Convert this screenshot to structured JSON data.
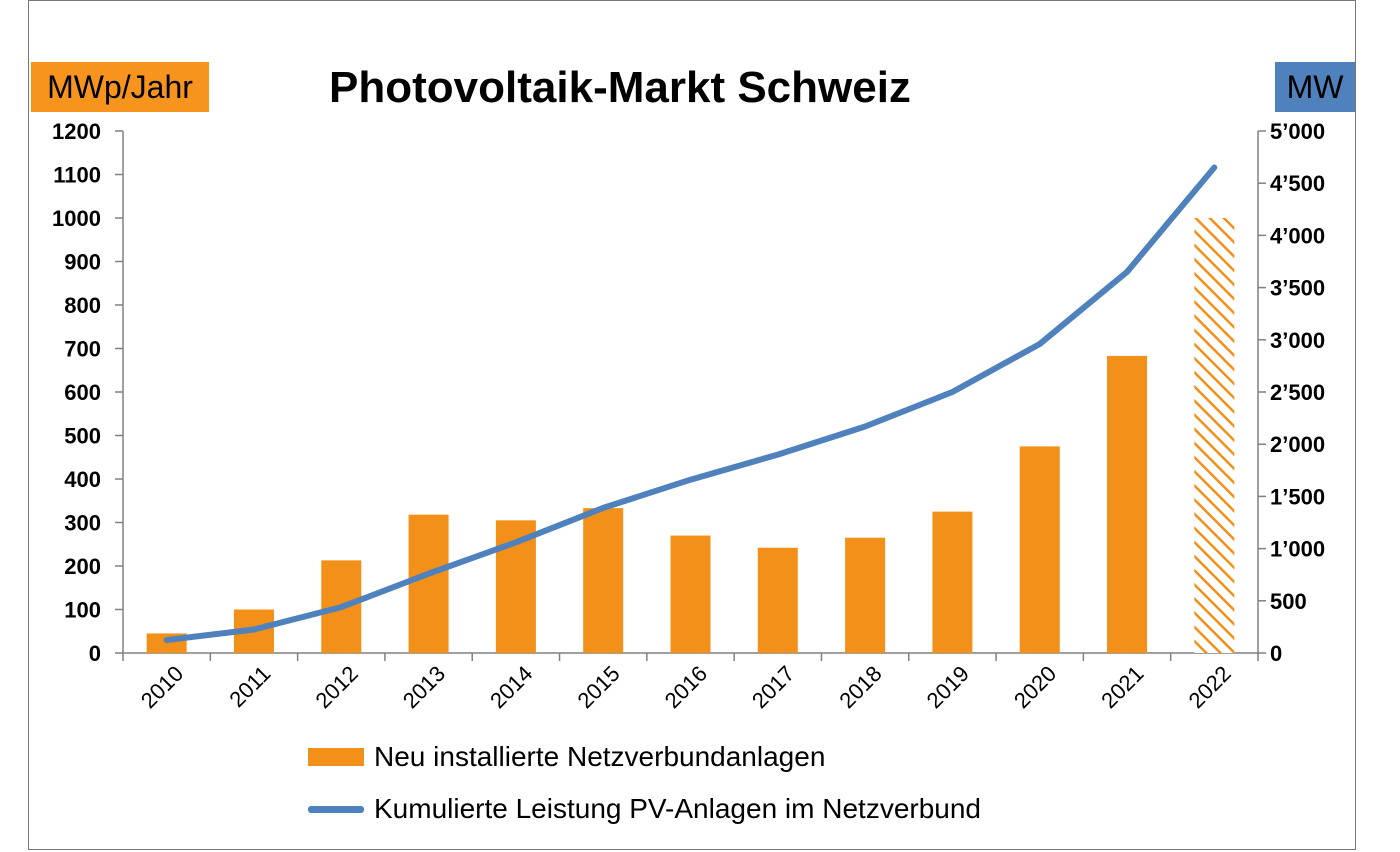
{
  "chart_data": {
    "type": "bar",
    "title": "Photovoltaik-Markt Schweiz",
    "left_axis_label": "MWp/Jahr",
    "right_axis_label": "MW",
    "categories": [
      "2010",
      "2011",
      "2012",
      "2013",
      "2014",
      "2015",
      "2016",
      "2017",
      "2018",
      "2019",
      "2020",
      "2021",
      "2022"
    ],
    "y_left_ticks": [
      "0",
      "100",
      "200",
      "300",
      "400",
      "500",
      "600",
      "700",
      "800",
      "900",
      "1000",
      "1100",
      "1200"
    ],
    "y_right_ticks": [
      "0",
      "500",
      "1’000",
      "1’500",
      "2’000",
      "2’500",
      "3’000",
      "3’500",
      "4’000",
      "4’500",
      "5’000"
    ],
    "ylim_left": [
      0,
      1200
    ],
    "ylim_right": [
      0,
      5000
    ],
    "grid": false,
    "legend_position": "bottom",
    "series": [
      {
        "name": "Neu installierte Netzverbundanlagen",
        "type": "bar",
        "axis": "left",
        "color": "#F39019",
        "values": [
          45,
          100,
          213,
          318,
          305,
          333,
          270,
          242,
          265,
          325,
          475,
          683,
          1000
        ],
        "hatched_last": true
      },
      {
        "name": "Kumulierte Leistung PV-Anlagen im Netzverbund",
        "type": "line",
        "axis": "right",
        "color": "#4F81BD",
        "values": [
          125,
          225,
          440,
          760,
          1060,
          1390,
          1660,
          1900,
          2170,
          2500,
          2960,
          3650,
          4650
        ]
      }
    ]
  },
  "colors": {
    "left_badge": "#F7941D",
    "right_badge": "#4F81BD",
    "axis": "#808080"
  }
}
